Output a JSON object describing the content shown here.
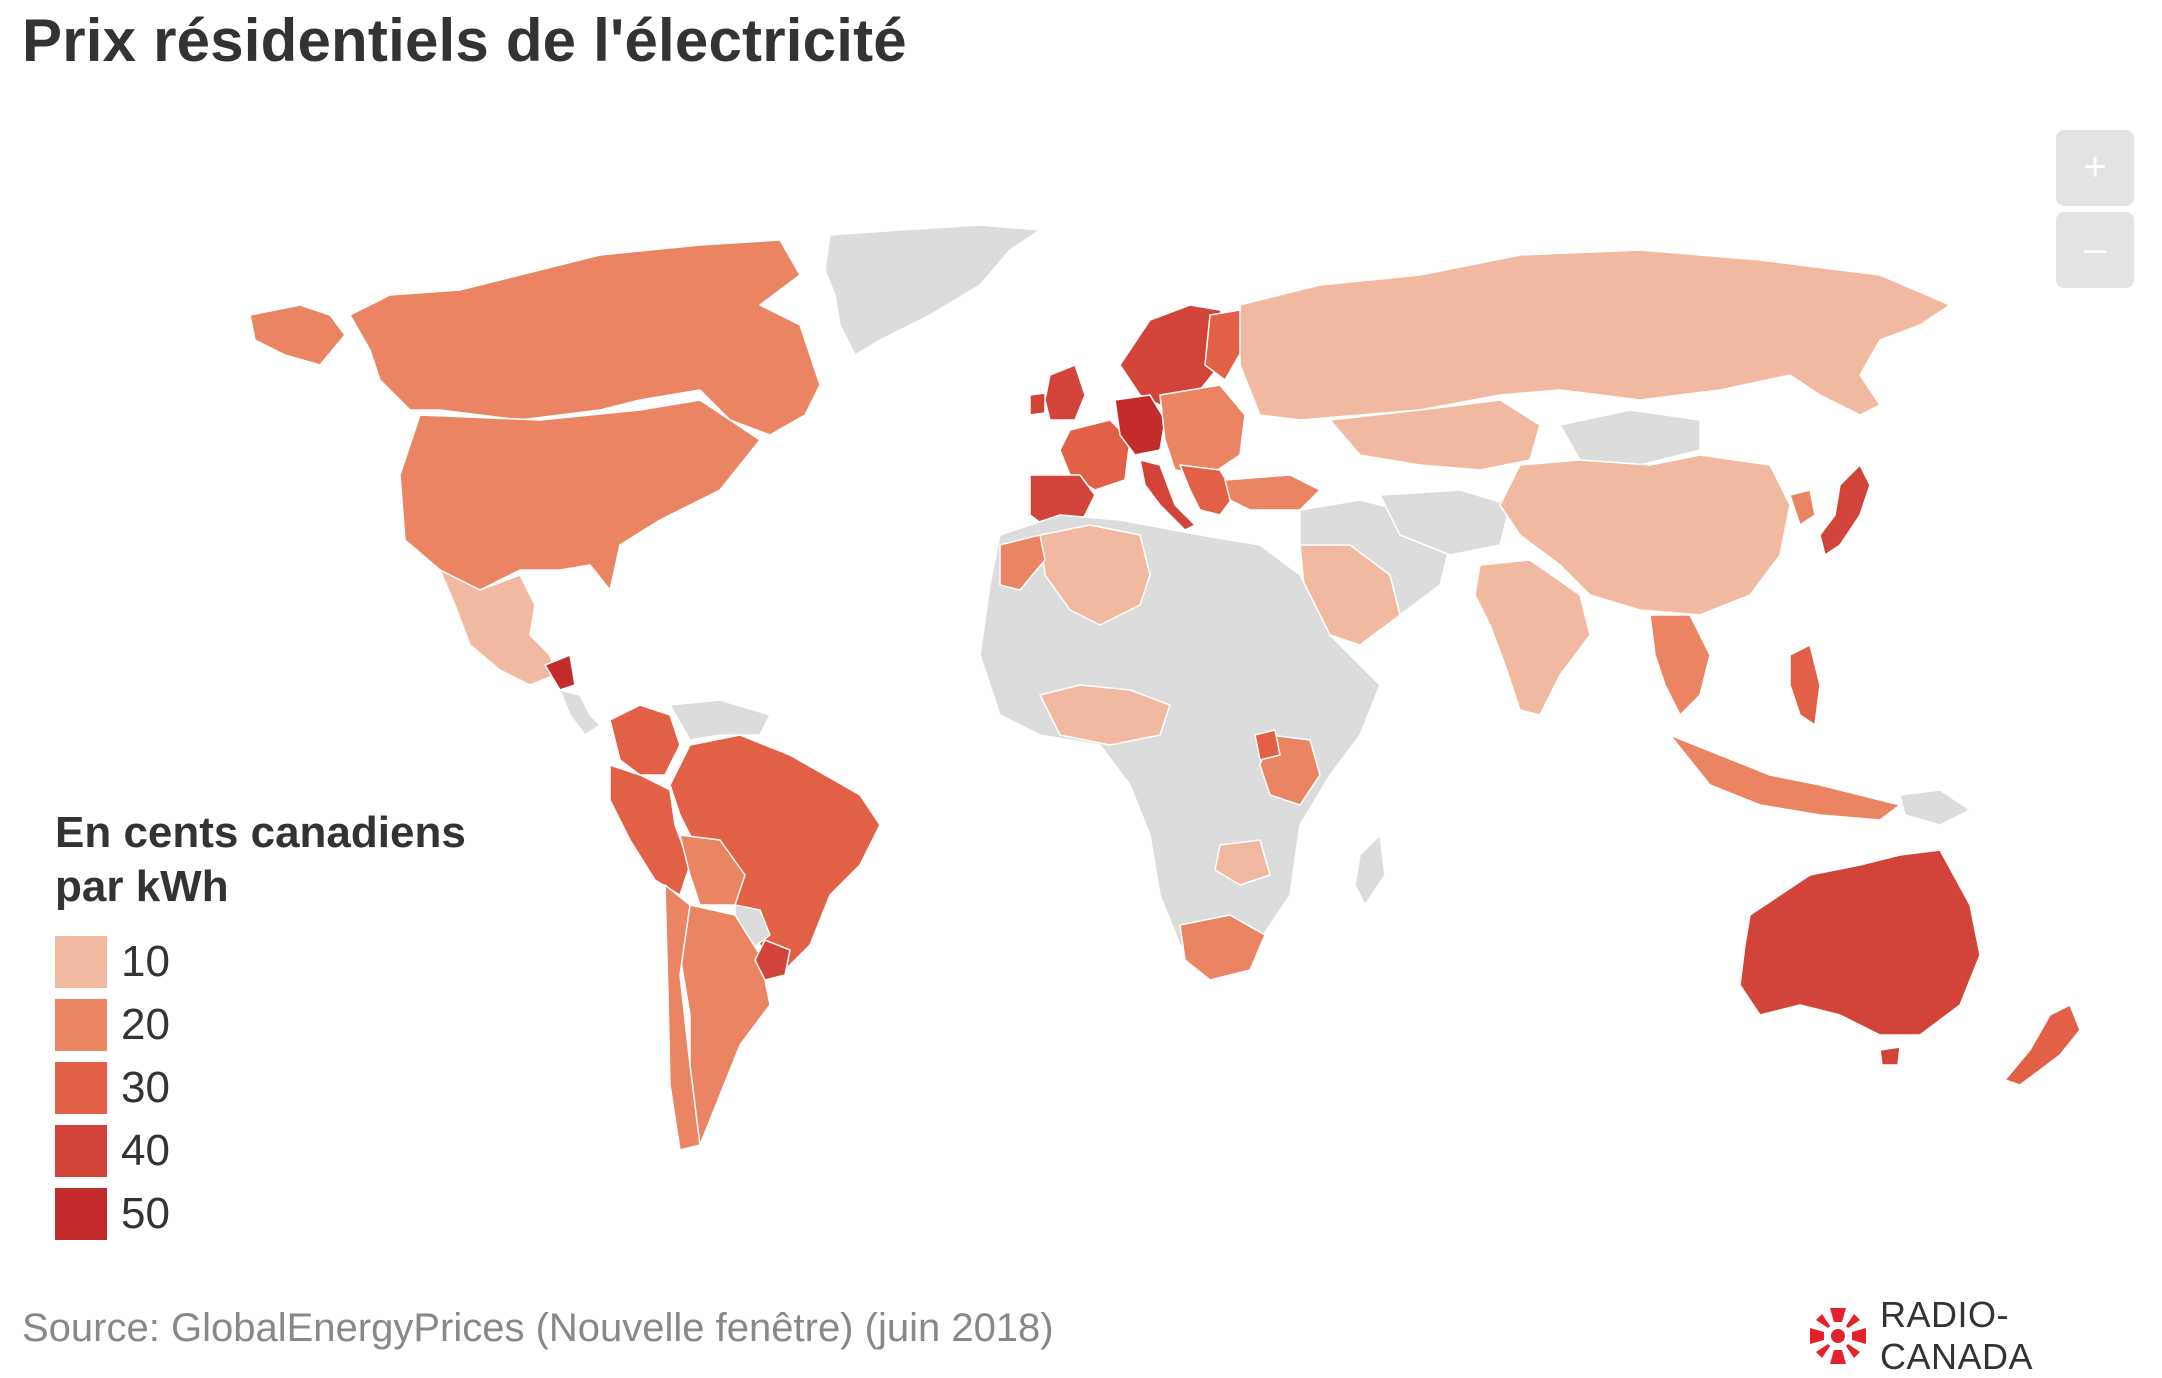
{
  "title": "Prix résidentiels de l'électricité",
  "zoom": {
    "in_label": "+",
    "out_label": "–"
  },
  "legend": {
    "title_line1": "En cents canadiens",
    "title_line2": "par kWh",
    "items": [
      {
        "label": "10",
        "color": "#f2b9a1"
      },
      {
        "label": "20",
        "color": "#ea8463"
      },
      {
        "label": "30",
        "color": "#e26046"
      },
      {
        "label": "40",
        "color": "#d2433a"
      },
      {
        "label": "50",
        "color": "#c42b2b"
      }
    ]
  },
  "source": "Source: GlobalEnergyPrices (Nouvelle fenêtre) (juin 2018)",
  "brand": {
    "name": "RADIO-CANADA",
    "color": "#e3222b"
  },
  "colors": {
    "no_data": "#dcdcdc",
    "background": "#ffffff"
  },
  "chart_data": {
    "type": "choropleth",
    "unit": "cents canadiens par kWh",
    "bins": [
      10,
      20,
      30,
      40,
      50
    ],
    "regions": [
      {
        "name": "Canada",
        "bin": 20
      },
      {
        "name": "United States",
        "bin": 20
      },
      {
        "name": "Mexico",
        "bin": 10
      },
      {
        "name": "Brazil",
        "bin": 30
      },
      {
        "name": "Peru",
        "bin": 30
      },
      {
        "name": "Colombia",
        "bin": 30
      },
      {
        "name": "Argentina",
        "bin": 20
      },
      {
        "name": "Bolivia",
        "bin": 20
      },
      {
        "name": "Uruguay",
        "bin": 40
      },
      {
        "name": "Germany",
        "bin": 50
      },
      {
        "name": "United Kingdom",
        "bin": 40
      },
      {
        "name": "France",
        "bin": 30
      },
      {
        "name": "Spain",
        "bin": 40
      },
      {
        "name": "Italy",
        "bin": 40
      },
      {
        "name": "Russia",
        "bin": 10
      },
      {
        "name": "China",
        "bin": 10
      },
      {
        "name": "India",
        "bin": 10
      },
      {
        "name": "Japan",
        "bin": 40
      },
      {
        "name": "Australia",
        "bin": 40
      },
      {
        "name": "New Zealand",
        "bin": 30
      },
      {
        "name": "South Africa",
        "bin": 20
      },
      {
        "name": "Algeria",
        "bin": 10
      },
      {
        "name": "Morocco",
        "bin": 20
      },
      {
        "name": "Kenya",
        "bin": 20
      },
      {
        "name": "Uganda",
        "bin": 30
      },
      {
        "name": "Philippines",
        "bin": 30
      },
      {
        "name": "Indonesia",
        "bin": 20
      }
    ]
  }
}
